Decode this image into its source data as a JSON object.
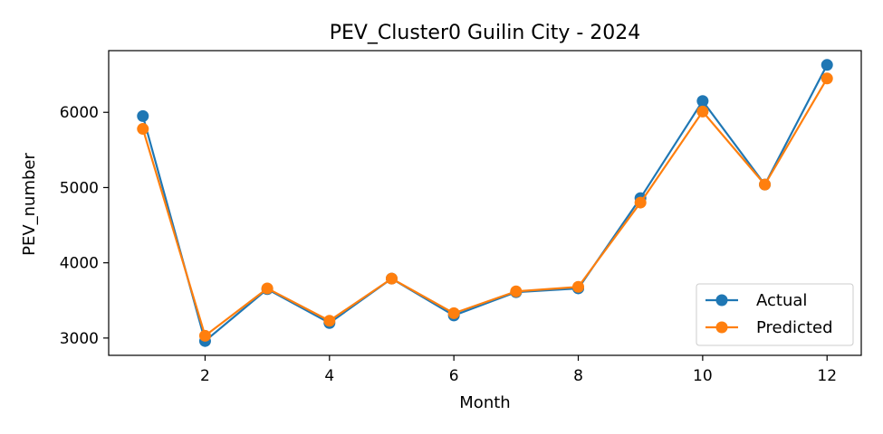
{
  "chart_data": {
    "type": "line",
    "title": "PEV_Cluster0 Guilin City - 2024",
    "xlabel": "Month",
    "ylabel": "PEV_number",
    "x": [
      1,
      2,
      3,
      4,
      5,
      6,
      7,
      8,
      9,
      10,
      11,
      12
    ],
    "xlim": [
      0.45,
      12.55
    ],
    "ylim": [
      2770,
      6820
    ],
    "xticks": [
      2,
      4,
      6,
      8,
      10,
      12
    ],
    "yticks": [
      3000,
      4000,
      5000,
      6000
    ],
    "grid": false,
    "legend_position": "lower-right",
    "series": [
      {
        "name": "Actual",
        "color": "#1f77b4",
        "marker": "circle",
        "values": [
          5950,
          2960,
          3650,
          3200,
          3790,
          3300,
          3610,
          3660,
          4860,
          6150,
          5040,
          6630
        ]
      },
      {
        "name": "Predicted",
        "color": "#ff7f0e",
        "marker": "circle",
        "values": [
          5780,
          3030,
          3660,
          3230,
          3790,
          3330,
          3620,
          3680,
          4800,
          6010,
          5040,
          6450
        ]
      }
    ]
  }
}
